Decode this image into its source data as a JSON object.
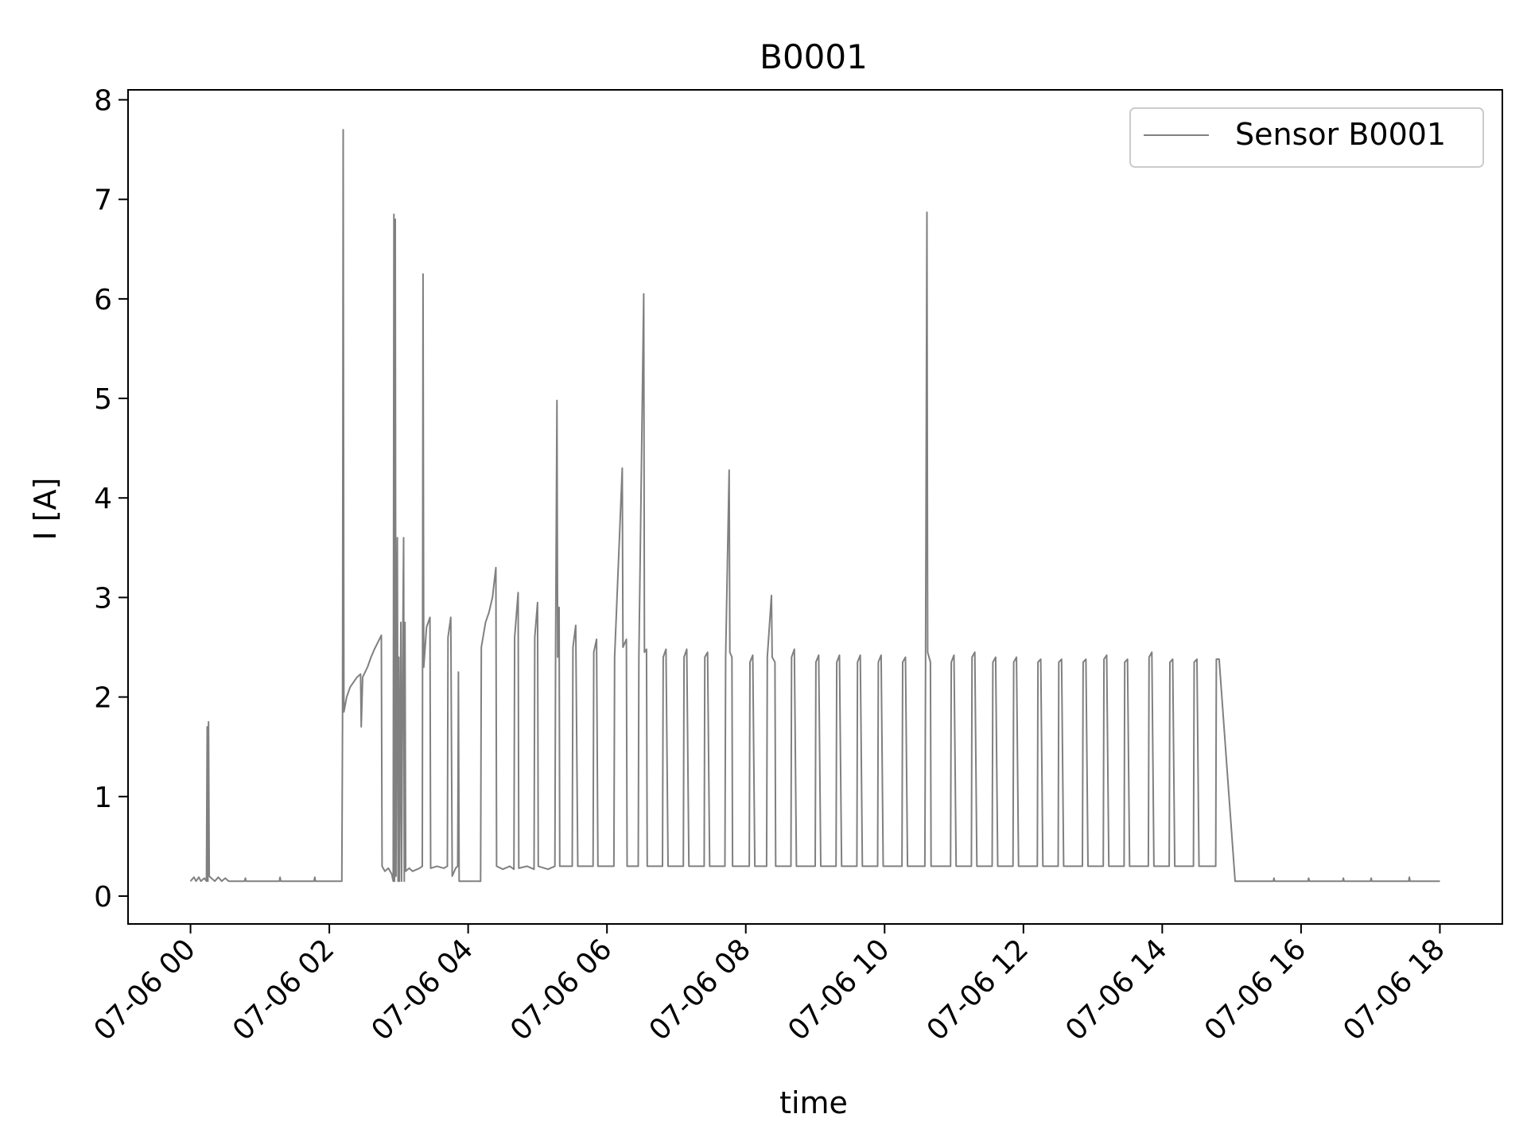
{
  "chart_data": {
    "type": "line",
    "title": "B0001",
    "xlabel": "time",
    "ylabel": "I [A]",
    "x_unit": "hours on 07-06",
    "xlim": [
      -0.9,
      18.9
    ],
    "ylim": [
      -0.28,
      8.1
    ],
    "x_ticks": [
      0,
      2,
      4,
      6,
      8,
      10,
      12,
      14,
      16,
      18
    ],
    "x_tick_labels": [
      "07-06 00",
      "07-06 02",
      "07-06 04",
      "07-06 06",
      "07-06 08",
      "07-06 10",
      "07-06 12",
      "07-06 14",
      "07-06 16",
      "07-06 18"
    ],
    "y_ticks": [
      0,
      1,
      2,
      3,
      4,
      5,
      6,
      7,
      8
    ],
    "y_tick_labels": [
      "0",
      "1",
      "2",
      "3",
      "4",
      "5",
      "6",
      "7",
      "8"
    ],
    "grid": false,
    "legend": {
      "placement": "top-right",
      "entries": [
        "Sensor B0001"
      ]
    },
    "colors": {
      "series": "#808080",
      "axes": "#000000",
      "legend_border": "#cccccc"
    },
    "series": [
      {
        "name": "Sensor B0001",
        "points": [
          [
            0.0,
            0.15
          ],
          [
            0.05,
            0.19
          ],
          [
            0.08,
            0.15
          ],
          [
            0.12,
            0.19
          ],
          [
            0.15,
            0.15
          ],
          [
            0.2,
            0.18
          ],
          [
            0.23,
            0.15
          ],
          [
            0.24,
            1.7
          ],
          [
            0.25,
            0.15
          ],
          [
            0.26,
            1.75
          ],
          [
            0.27,
            0.2
          ],
          [
            0.3,
            0.18
          ],
          [
            0.35,
            0.15
          ],
          [
            0.4,
            0.19
          ],
          [
            0.45,
            0.15
          ],
          [
            0.5,
            0.18
          ],
          [
            0.55,
            0.15
          ],
          [
            0.78,
            0.15
          ],
          [
            0.79,
            0.18
          ],
          [
            0.8,
            0.15
          ],
          [
            1.28,
            0.15
          ],
          [
            1.29,
            0.19
          ],
          [
            1.3,
            0.15
          ],
          [
            1.78,
            0.15
          ],
          [
            1.79,
            0.19
          ],
          [
            1.8,
            0.15
          ],
          [
            2.18,
            0.15
          ],
          [
            2.19,
            1.75
          ],
          [
            2.2,
            7.7
          ],
          [
            2.21,
            1.85
          ],
          [
            2.25,
            2.0
          ],
          [
            2.3,
            2.1
          ],
          [
            2.35,
            2.15
          ],
          [
            2.4,
            2.2
          ],
          [
            2.45,
            2.23
          ],
          [
            2.46,
            1.7
          ],
          [
            2.48,
            2.2
          ],
          [
            2.55,
            2.3
          ],
          [
            2.6,
            2.4
          ],
          [
            2.65,
            2.48
          ],
          [
            2.7,
            2.55
          ],
          [
            2.75,
            2.62
          ],
          [
            2.76,
            0.3
          ],
          [
            2.8,
            0.25
          ],
          [
            2.85,
            0.28
          ],
          [
            2.9,
            0.22
          ],
          [
            2.92,
            0.15
          ],
          [
            2.93,
            6.85
          ],
          [
            2.94,
            0.15
          ],
          [
            2.95,
            6.8
          ],
          [
            2.96,
            0.2
          ],
          [
            2.97,
            2.5
          ],
          [
            2.98,
            3.6
          ],
          [
            2.99,
            0.15
          ],
          [
            3.0,
            2.4
          ],
          [
            3.01,
            0.15
          ],
          [
            3.03,
            2.75
          ],
          [
            3.04,
            0.15
          ],
          [
            3.06,
            2.7
          ],
          [
            3.07,
            3.6
          ],
          [
            3.08,
            0.15
          ],
          [
            3.09,
            2.75
          ],
          [
            3.1,
            0.25
          ],
          [
            3.15,
            0.28
          ],
          [
            3.2,
            0.25
          ],
          [
            3.3,
            0.28
          ],
          [
            3.34,
            0.3
          ],
          [
            3.35,
            6.25
          ],
          [
            3.36,
            2.3
          ],
          [
            3.4,
            2.7
          ],
          [
            3.45,
            2.8
          ],
          [
            3.46,
            0.28
          ],
          [
            3.55,
            0.3
          ],
          [
            3.65,
            0.28
          ],
          [
            3.7,
            0.3
          ],
          [
            3.71,
            2.6
          ],
          [
            3.75,
            2.8
          ],
          [
            3.77,
            0.2
          ],
          [
            3.82,
            0.28
          ],
          [
            3.85,
            0.3
          ],
          [
            3.86,
            2.25
          ],
          [
            3.87,
            0.15
          ],
          [
            4.18,
            0.15
          ],
          [
            4.19,
            2.5
          ],
          [
            4.25,
            2.75
          ],
          [
            4.3,
            2.85
          ],
          [
            4.35,
            3.0
          ],
          [
            4.4,
            3.3
          ],
          [
            4.41,
            0.3
          ],
          [
            4.5,
            0.27
          ],
          [
            4.6,
            0.3
          ],
          [
            4.66,
            0.27
          ],
          [
            4.67,
            2.6
          ],
          [
            4.72,
            3.05
          ],
          [
            4.73,
            0.28
          ],
          [
            4.85,
            0.3
          ],
          [
            4.95,
            0.27
          ],
          [
            4.96,
            2.6
          ],
          [
            5.0,
            2.95
          ],
          [
            5.01,
            0.3
          ],
          [
            5.15,
            0.27
          ],
          [
            5.25,
            0.3
          ],
          [
            5.26,
            2.5
          ],
          [
            5.28,
            4.98
          ],
          [
            5.29,
            2.4
          ],
          [
            5.31,
            2.9
          ],
          [
            5.32,
            0.3
          ],
          [
            5.5,
            0.3
          ],
          [
            5.51,
            2.5
          ],
          [
            5.55,
            2.72
          ],
          [
            5.58,
            0.3
          ],
          [
            5.8,
            0.3
          ],
          [
            5.81,
            2.45
          ],
          [
            5.85,
            2.58
          ],
          [
            5.87,
            0.3
          ],
          [
            6.1,
            0.3
          ],
          [
            6.11,
            2.4
          ],
          [
            6.22,
            4.3
          ],
          [
            6.23,
            2.5
          ],
          [
            6.28,
            2.58
          ],
          [
            6.29,
            0.3
          ],
          [
            6.45,
            0.3
          ],
          [
            6.46,
            2.4
          ],
          [
            6.53,
            6.05
          ],
          [
            6.54,
            2.45
          ],
          [
            6.57,
            2.48
          ],
          [
            6.58,
            0.3
          ],
          [
            6.8,
            0.3
          ],
          [
            6.81,
            2.4
          ],
          [
            6.85,
            2.48
          ],
          [
            6.88,
            0.3
          ],
          [
            7.1,
            0.3
          ],
          [
            7.11,
            2.4
          ],
          [
            7.15,
            2.48
          ],
          [
            7.18,
            0.3
          ],
          [
            7.4,
            0.3
          ],
          [
            7.41,
            2.4
          ],
          [
            7.45,
            2.45
          ],
          [
            7.48,
            0.3
          ],
          [
            7.7,
            0.3
          ],
          [
            7.71,
            2.4
          ],
          [
            7.76,
            4.28
          ],
          [
            7.77,
            2.45
          ],
          [
            7.8,
            2.4
          ],
          [
            7.81,
            0.3
          ],
          [
            8.05,
            0.3
          ],
          [
            8.06,
            2.35
          ],
          [
            8.1,
            2.42
          ],
          [
            8.13,
            0.3
          ],
          [
            8.3,
            0.3
          ],
          [
            8.31,
            2.4
          ],
          [
            8.37,
            3.02
          ],
          [
            8.38,
            2.4
          ],
          [
            8.42,
            2.35
          ],
          [
            8.43,
            0.3
          ],
          [
            8.65,
            0.3
          ],
          [
            8.66,
            2.4
          ],
          [
            8.7,
            2.48
          ],
          [
            8.73,
            0.3
          ],
          [
            9.0,
            0.3
          ],
          [
            9.01,
            2.35
          ],
          [
            9.05,
            2.42
          ],
          [
            9.08,
            0.3
          ],
          [
            9.3,
            0.3
          ],
          [
            9.31,
            2.35
          ],
          [
            9.35,
            2.42
          ],
          [
            9.38,
            0.3
          ],
          [
            9.6,
            0.3
          ],
          [
            9.61,
            2.35
          ],
          [
            9.65,
            2.42
          ],
          [
            9.68,
            0.3
          ],
          [
            9.9,
            0.3
          ],
          [
            9.91,
            2.35
          ],
          [
            9.95,
            2.42
          ],
          [
            9.98,
            0.3
          ],
          [
            10.25,
            0.3
          ],
          [
            10.26,
            2.35
          ],
          [
            10.3,
            2.4
          ],
          [
            10.33,
            0.3
          ],
          [
            10.58,
            0.3
          ],
          [
            10.59,
            2.4
          ],
          [
            10.61,
            6.87
          ],
          [
            10.62,
            2.45
          ],
          [
            10.66,
            2.35
          ],
          [
            10.67,
            0.3
          ],
          [
            10.95,
            0.3
          ],
          [
            10.96,
            2.35
          ],
          [
            11.0,
            2.42
          ],
          [
            11.03,
            0.3
          ],
          [
            11.25,
            0.3
          ],
          [
            11.26,
            2.4
          ],
          [
            11.3,
            2.45
          ],
          [
            11.33,
            0.3
          ],
          [
            11.55,
            0.3
          ],
          [
            11.56,
            2.35
          ],
          [
            11.6,
            2.4
          ],
          [
            11.63,
            0.3
          ],
          [
            11.85,
            0.3
          ],
          [
            11.86,
            2.35
          ],
          [
            11.9,
            2.4
          ],
          [
            11.93,
            0.3
          ],
          [
            12.2,
            0.3
          ],
          [
            12.21,
            2.35
          ],
          [
            12.25,
            2.38
          ],
          [
            12.28,
            0.3
          ],
          [
            12.5,
            0.3
          ],
          [
            12.51,
            2.35
          ],
          [
            12.55,
            2.38
          ],
          [
            12.58,
            0.3
          ],
          [
            12.85,
            0.3
          ],
          [
            12.86,
            2.35
          ],
          [
            12.9,
            2.38
          ],
          [
            12.93,
            0.3
          ],
          [
            13.15,
            0.3
          ],
          [
            13.16,
            2.38
          ],
          [
            13.2,
            2.42
          ],
          [
            13.23,
            0.3
          ],
          [
            13.45,
            0.3
          ],
          [
            13.46,
            2.35
          ],
          [
            13.5,
            2.38
          ],
          [
            13.53,
            0.3
          ],
          [
            13.8,
            0.3
          ],
          [
            13.81,
            2.4
          ],
          [
            13.85,
            2.45
          ],
          [
            13.88,
            0.3
          ],
          [
            14.1,
            0.3
          ],
          [
            14.11,
            2.35
          ],
          [
            14.15,
            2.38
          ],
          [
            14.18,
            0.3
          ],
          [
            14.45,
            0.3
          ],
          [
            14.46,
            2.35
          ],
          [
            14.5,
            2.38
          ],
          [
            14.53,
            0.3
          ],
          [
            14.77,
            0.3
          ],
          [
            14.78,
            2.38
          ],
          [
            14.82,
            2.38
          ],
          [
            15.05,
            0.15
          ],
          [
            15.6,
            0.15
          ],
          [
            15.61,
            0.18
          ],
          [
            15.62,
            0.15
          ],
          [
            16.1,
            0.15
          ],
          [
            16.11,
            0.18
          ],
          [
            16.12,
            0.15
          ],
          [
            16.6,
            0.15
          ],
          [
            16.61,
            0.18
          ],
          [
            16.62,
            0.15
          ],
          [
            17.0,
            0.15
          ],
          [
            17.01,
            0.18
          ],
          [
            17.02,
            0.15
          ],
          [
            17.55,
            0.15
          ],
          [
            17.56,
            0.19
          ],
          [
            17.57,
            0.15
          ],
          [
            18.0,
            0.15
          ]
        ]
      }
    ]
  }
}
